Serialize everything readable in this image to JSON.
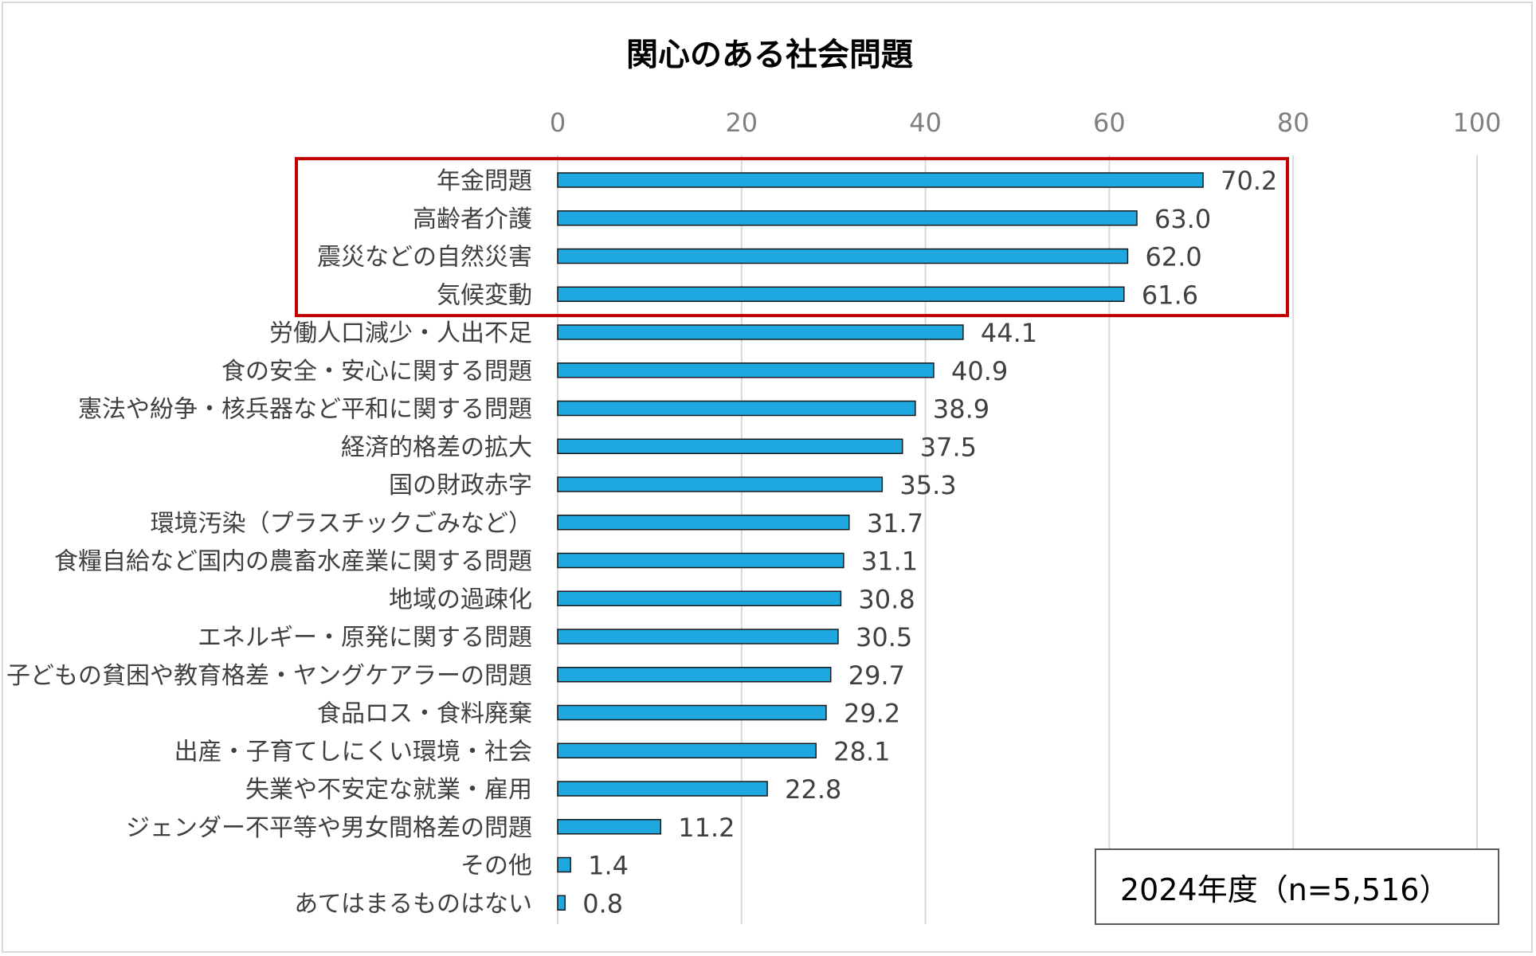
{
  "chart_data": {
    "type": "bar",
    "orientation": "horizontal",
    "title": "関心のある社会問題",
    "xlim": [
      0,
      100
    ],
    "x_ticks": [
      0,
      20,
      40,
      60,
      80,
      100
    ],
    "x_tick_labels": [
      "0",
      "20",
      "40",
      "60",
      "80",
      "100"
    ],
    "grid": true,
    "categories": [
      "年金問題",
      "高齢者介護",
      "震災などの自然災害",
      "気候変動",
      "労働人口減少・人出不足",
      "食の安全・安心に関する問題",
      "憲法や紛争・核兵器など平和に関する問題",
      "経済的格差の拡大",
      "国の財政赤字",
      "環境汚染（プラスチックごみなど）",
      "食糧自給など国内の農畜水産業に関する問題",
      "地域の過疎化",
      "エネルギー・原発に関する問題",
      "子どもの貧困や教育格差・ヤングケアラーの問題",
      "食品ロス・食料廃棄",
      "出産・子育てしにくい環境・社会",
      "失業や不安定な就業・雇用",
      "ジェンダー不平等や男女間格差の問題",
      "その他",
      "あてはまるものはない"
    ],
    "values": [
      70.2,
      63.0,
      62.0,
      61.6,
      44.1,
      40.9,
      38.9,
      37.5,
      35.3,
      31.7,
      31.1,
      30.8,
      30.5,
      29.7,
      29.2,
      28.1,
      22.8,
      11.2,
      1.4,
      0.8
    ],
    "value_labels": [
      "70.2",
      "63.0",
      "62.0",
      "61.6",
      "44.1",
      "40.9",
      "38.9",
      "37.5",
      "35.3",
      "31.7",
      "31.1",
      "30.8",
      "30.5",
      "29.7",
      "29.2",
      "28.1",
      "22.8",
      "11.2",
      "1.4",
      "0.8"
    ],
    "legend_text": "2024年度（n=5,516）",
    "highlighted_categories_count": 4
  },
  "colors": {
    "bar_fill": "#1fa7e0",
    "bar_stroke": "#1a1a1a",
    "grid": "#d9d9d9",
    "highlight_box": "#c00000"
  }
}
